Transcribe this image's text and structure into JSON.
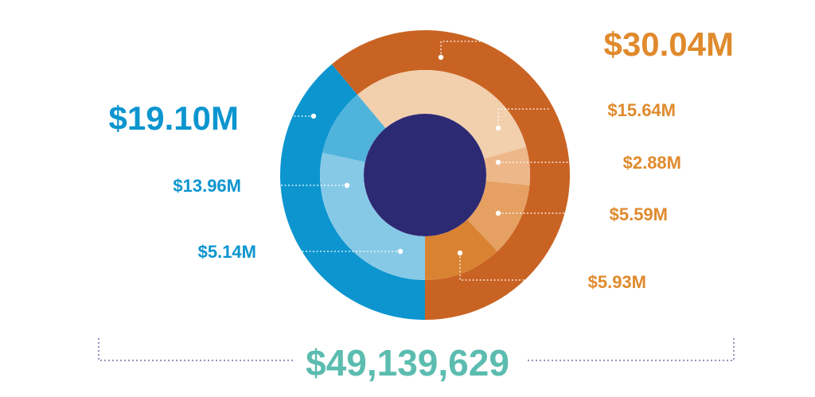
{
  "chart_data": {
    "type": "pie",
    "title": "",
    "total_label": "$49,139,629",
    "groups": [
      {
        "label": "$19.10M",
        "value": 19.1,
        "color": "#0c95cf",
        "children": [
          {
            "label": "$13.96M",
            "value": 13.96,
            "color": "#86c9e7"
          },
          {
            "label": "$5.14M",
            "value": 5.14,
            "color": "#4fb3dc"
          }
        ]
      },
      {
        "label": "$30.04M",
        "value": 30.04,
        "color": "#c96323",
        "children": [
          {
            "label": "$15.64M",
            "value": 15.64,
            "color": "#f2cfad"
          },
          {
            "label": "$2.88M",
            "value": 2.88,
            "color": "#edb789"
          },
          {
            "label": "$5.59M",
            "value": 5.59,
            "color": "#e5a062"
          },
          {
            "label": "$5.93M",
            "value": 5.93,
            "color": "#d98332"
          }
        ]
      }
    ],
    "center_color": "#2d2a74",
    "label_colors": {
      "blue": "#0c95cf",
      "orange": "#e08a2d",
      "total": "#5bbcaf",
      "bracket": "#9a90c2"
    }
  }
}
